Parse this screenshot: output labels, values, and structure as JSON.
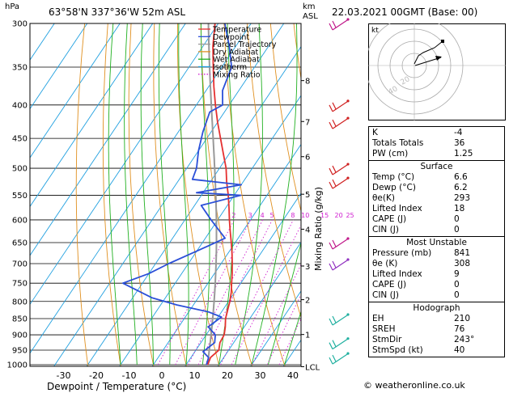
{
  "header": {
    "hpa_label": "hPa",
    "location": "63°58'N 337°36'W 52m ASL",
    "km_label": "km",
    "asl_label": "ASL",
    "datetime": "22.03.2021 00GMT (Base: 00)"
  },
  "legend": [
    {
      "label": "Temperature",
      "color": "#e53030",
      "style": "solid"
    },
    {
      "label": "Dewpoint",
      "color": "#2b4fd8",
      "style": "solid"
    },
    {
      "label": "Parcel Trajectory",
      "color": "#999999",
      "style": "solid"
    },
    {
      "label": "Dry Adiabat",
      "color": "#e09020",
      "style": "solid"
    },
    {
      "label": "Wet Adiabat",
      "color": "#20b020",
      "style": "solid"
    },
    {
      "label": "Isotherm",
      "color": "#20a0e0",
      "style": "solid"
    },
    {
      "label": "Mixing Ratio",
      "color": "#d020d0",
      "style": "dotted"
    }
  ],
  "chart_data": {
    "type": "line",
    "title": "",
    "xlabel": "Dewpoint / Temperature (°C)",
    "ylabel": "hPa",
    "right_label": "Mixing Ratio (g/kg)",
    "pressure_levels": [
      300,
      350,
      400,
      450,
      500,
      550,
      600,
      650,
      700,
      750,
      800,
      850,
      900,
      950,
      1000
    ],
    "x_ticks": [
      -30,
      -20,
      -10,
      0,
      10,
      20,
      30,
      40
    ],
    "xlim": [
      -40,
      40
    ],
    "ylim": [
      1000,
      300
    ],
    "km_ticks": [
      {
        "label": "8",
        "p": 367
      },
      {
        "label": "7",
        "p": 424
      },
      {
        "label": "6",
        "p": 480
      },
      {
        "label": "5",
        "p": 548
      },
      {
        "label": "4",
        "p": 620
      },
      {
        "label": "3",
        "p": 706
      },
      {
        "label": "2",
        "p": 795
      },
      {
        "label": "1",
        "p": 899
      },
      {
        "label": "LCL",
        "p": 1007
      }
    ],
    "mixing_ratio_labels": [
      "2",
      "3",
      "4",
      "5",
      "8",
      "10",
      "15",
      "20",
      "25"
    ],
    "series": [
      {
        "name": "Temperature",
        "color": "#e53030",
        "points": [
          [
            6.6,
            1000
          ],
          [
            6.0,
            975
          ],
          [
            7.0,
            950
          ],
          [
            5.8,
            925
          ],
          [
            5.5,
            900
          ],
          [
            4.2,
            875
          ],
          [
            2.6,
            850
          ],
          [
            1.5,
            825
          ],
          [
            0.4,
            800
          ],
          [
            -1.0,
            775
          ],
          [
            -2.8,
            750
          ],
          [
            -4.6,
            725
          ],
          [
            -6.6,
            700
          ],
          [
            -8.8,
            675
          ],
          [
            -11.2,
            650
          ],
          [
            -13.8,
            625
          ],
          [
            -16.4,
            600
          ],
          [
            -19.0,
            575
          ],
          [
            -21.8,
            550
          ],
          [
            -25.0,
            525
          ],
          [
            -28.0,
            500
          ],
          [
            -31.8,
            475
          ],
          [
            -35.8,
            450
          ],
          [
            -40.0,
            425
          ],
          [
            -44.2,
            400
          ],
          [
            -48.4,
            375
          ],
          [
            -52.6,
            350
          ],
          [
            -57.0,
            325
          ],
          [
            -61.0,
            300
          ]
        ]
      },
      {
        "name": "Dewpoint",
        "color": "#2b4fd8",
        "points": [
          [
            6.2,
            1000
          ],
          [
            5.4,
            975
          ],
          [
            2.5,
            955
          ],
          [
            4.2,
            925
          ],
          [
            2.8,
            900
          ],
          [
            -1.0,
            875
          ],
          [
            1.0,
            845
          ],
          [
            -4.0,
            830
          ],
          [
            -15.0,
            810
          ],
          [
            -24.0,
            790
          ],
          [
            -36.0,
            750
          ],
          [
            -30.0,
            725
          ],
          [
            -26.0,
            700
          ],
          [
            -20.0,
            670
          ],
          [
            -14.0,
            640
          ],
          [
            -22.0,
            600
          ],
          [
            -28.0,
            570
          ],
          [
            -18.0,
            550
          ],
          [
            -32.0,
            545
          ],
          [
            -20.0,
            530
          ],
          [
            -36.0,
            520
          ],
          [
            -37.0,
            500
          ],
          [
            -40.0,
            470
          ],
          [
            -42.5,
            440
          ],
          [
            -44.5,
            410
          ],
          [
            -42.0,
            400
          ],
          [
            -45.0,
            380
          ],
          [
            -47.0,
            350
          ],
          [
            -52.0,
            325
          ],
          [
            -58.0,
            300
          ]
        ]
      }
    ]
  },
  "hodograph": {
    "label": "kt",
    "rings": [
      "20",
      "40"
    ]
  },
  "table": {
    "indices": [
      {
        "k": "K",
        "v": "-4"
      },
      {
        "k": "Totals Totals",
        "v": "36"
      },
      {
        "k": "PW (cm)",
        "v": "1.25"
      }
    ],
    "surface_title": "Surface",
    "surface": [
      {
        "k": "Temp (°C)",
        "v": "6.6"
      },
      {
        "k": "Dewp (°C)",
        "v": "6.2"
      },
      {
        "k": "θe(K)",
        "v": "293"
      },
      {
        "k": "Lifted Index",
        "v": "18"
      },
      {
        "k": "CAPE (J)",
        "v": "0"
      },
      {
        "k": "CIN (J)",
        "v": "0"
      }
    ],
    "unstable_title": "Most Unstable",
    "unstable": [
      {
        "k": "Pressure (mb)",
        "v": "841"
      },
      {
        "k": "θe (K)",
        "v": "308"
      },
      {
        "k": "Lifted Index",
        "v": "9"
      },
      {
        "k": "CAPE (J)",
        "v": "0"
      },
      {
        "k": "CIN (J)",
        "v": "0"
      }
    ],
    "hodo_title": "Hodograph",
    "hodo": [
      {
        "k": "EH",
        "v": "210"
      },
      {
        "k": "SREH",
        "v": "76"
      },
      {
        "k": "StmDir",
        "v": "243°"
      },
      {
        "k": "StmSpd (kt)",
        "v": "40"
      }
    ]
  },
  "footer": {
    "copyright": "© weatheronline.co.uk"
  }
}
